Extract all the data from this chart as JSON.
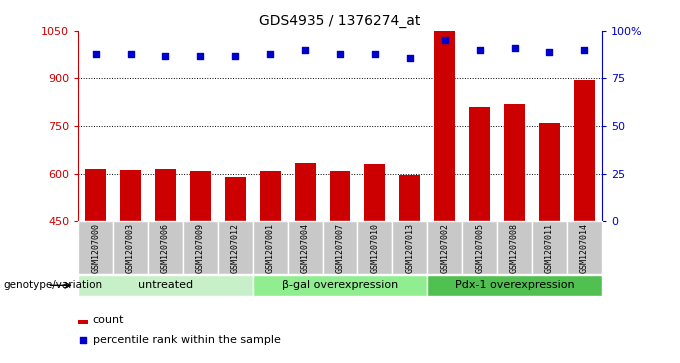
{
  "title": "GDS4935 / 1376274_at",
  "samples": [
    "GSM1207000",
    "GSM1207003",
    "GSM1207006",
    "GSM1207009",
    "GSM1207012",
    "GSM1207001",
    "GSM1207004",
    "GSM1207007",
    "GSM1207010",
    "GSM1207013",
    "GSM1207002",
    "GSM1207005",
    "GSM1207008",
    "GSM1207011",
    "GSM1207014"
  ],
  "counts": [
    615,
    613,
    614,
    608,
    591,
    608,
    635,
    608,
    630,
    597,
    1048,
    810,
    820,
    760,
    895
  ],
  "percentile_ranks": [
    88,
    88,
    87,
    87,
    87,
    88,
    90,
    88,
    88,
    86,
    95,
    90,
    91,
    89,
    90
  ],
  "groups": [
    {
      "label": "untreated",
      "start": 0,
      "end": 5
    },
    {
      "label": "β-gal overexpression",
      "start": 5,
      "end": 10
    },
    {
      "label": "Pdx-1 overexpression",
      "start": 10,
      "end": 15
    }
  ],
  "bar_color": "#CC0000",
  "dot_color": "#0000CC",
  "bar_bottom": 450,
  "ylim_left": [
    450,
    1050
  ],
  "ylim_right": [
    0,
    100
  ],
  "yticks_left": [
    450,
    600,
    750,
    900,
    1050
  ],
  "yticks_right": [
    0,
    25,
    50,
    75,
    100
  ],
  "grid_values": [
    600,
    750,
    900
  ],
  "group_bg_colors": [
    "#B8EEB8",
    "#90EE90",
    "#3CB371"
  ],
  "sample_bg_color": "#C8C8C8",
  "legend_count_color": "#CC0000",
  "legend_dot_color": "#0000CC",
  "genotype_label": "genotype/variation",
  "legend_count_label": "count",
  "legend_percentile_label": "percentile rank within the sample"
}
